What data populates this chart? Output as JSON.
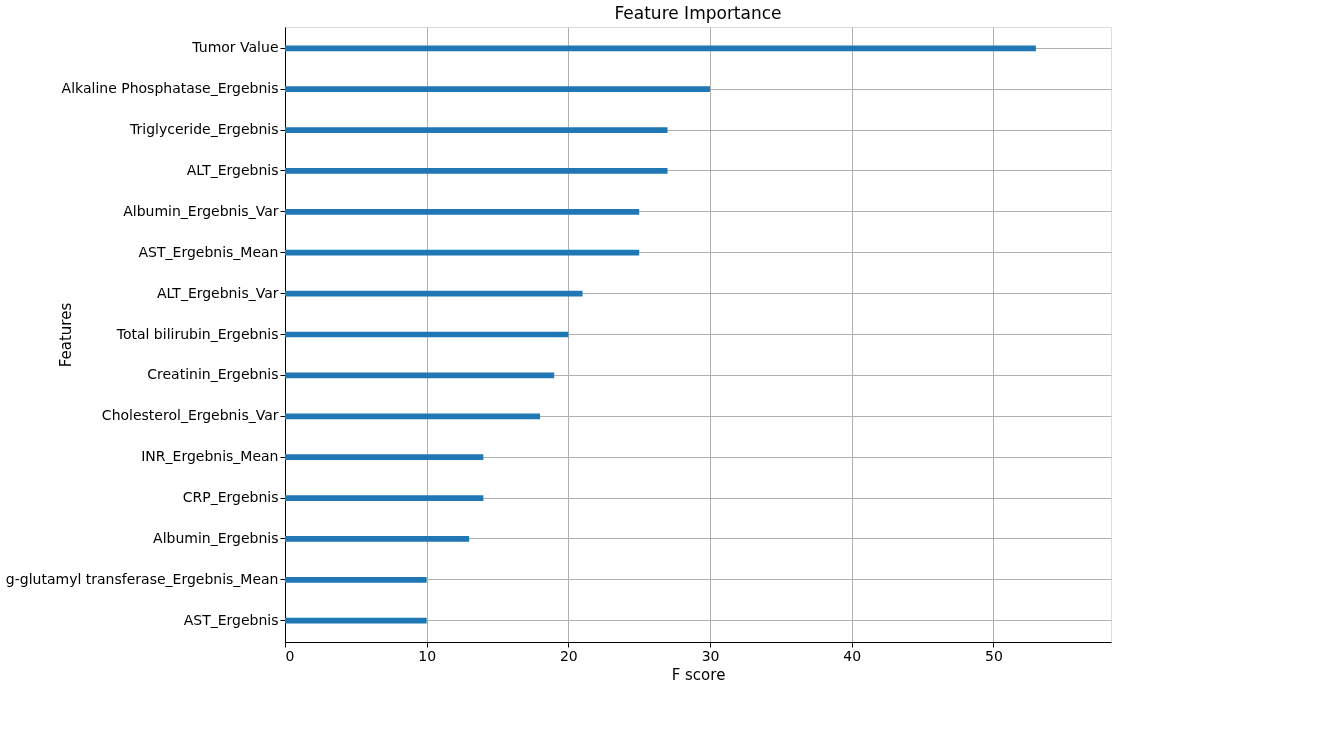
{
  "chart_data": {
    "type": "bar",
    "orientation": "horizontal",
    "title": "Feature Importance",
    "xlabel": "F score",
    "ylabel": "Features",
    "categories": [
      "Tumor Value",
      "Alkaline Phosphatase_Ergebnis",
      "Triglyceride_Ergebnis",
      "ALT_Ergebnis",
      "Albumin_Ergebnis_Var",
      "AST_Ergebnis_Mean",
      "ALT_Ergebnis_Var",
      "Total bilirubin_Ergebnis",
      "Creatinin_Ergebnis",
      "Cholesterol_Ergebnis_Var",
      "INR_Ergebnis_Mean",
      "CRP_Ergebnis",
      "Albumin_Ergebnis",
      "g-glutamyl transferase_Ergebnis_Mean",
      "AST_Ergebnis"
    ],
    "values": [
      53,
      30,
      27,
      27,
      25,
      25,
      21,
      20,
      19,
      18,
      14,
      14,
      13,
      10,
      10
    ],
    "color": "#1f77b4",
    "xlim": [
      0,
      58.3
    ],
    "xticks": [
      0,
      10,
      20,
      30,
      40,
      50
    ],
    "grid": true
  }
}
